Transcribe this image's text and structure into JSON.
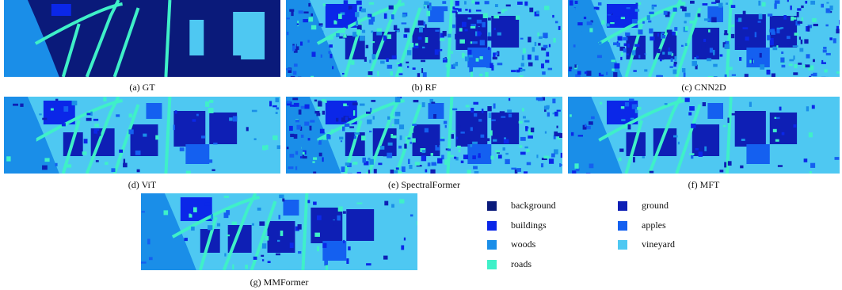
{
  "panels": [
    {
      "id": "gt",
      "caption": "(a) GT",
      "style": "gt"
    },
    {
      "id": "rf",
      "caption": "(b) RF",
      "style": "noisy"
    },
    {
      "id": "cnn2d",
      "caption": "(c) CNN2D",
      "style": "noisy"
    },
    {
      "id": "vit",
      "caption": "(d) ViT",
      "style": "smooth"
    },
    {
      "id": "spectralformer",
      "caption": "(e) SpectralFormer",
      "style": "noisy"
    },
    {
      "id": "mft",
      "caption": "(f) MFT",
      "style": "smooth"
    },
    {
      "id": "mmformer",
      "caption": "(g) MMFormer",
      "style": "smooth"
    }
  ],
  "legend": [
    {
      "label": "background",
      "color": "#0a1a7a"
    },
    {
      "label": "ground",
      "color": "#0e1fb5"
    },
    {
      "label": "buildings",
      "color": "#0b27e8"
    },
    {
      "label": "apples",
      "color": "#1460f0"
    },
    {
      "label": "woods",
      "color": "#1a8ee8"
    },
    {
      "label": "vineyard",
      "color": "#4ec8f2"
    },
    {
      "label": "roads",
      "color": "#3ff0c8"
    }
  ]
}
